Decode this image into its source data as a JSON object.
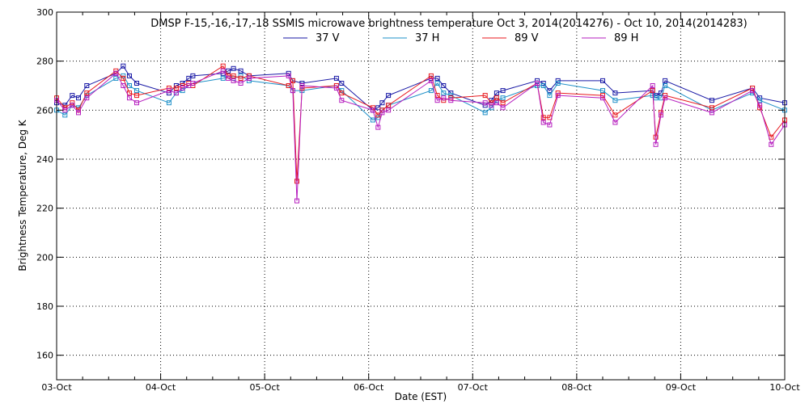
{
  "chart_data": {
    "type": "line",
    "title": "DMSP F-15,-16,-17,-18 SSMIS microwave brightness temperature Oct  3, 2014(2014276) - Oct 10, 2014(2014283)",
    "xlabel": "Date (EST)",
    "ylabel": "Brightness Temperature, Deg K",
    "xlim": [
      0,
      7
    ],
    "ylim": [
      150,
      300
    ],
    "yticks": [
      160,
      180,
      200,
      220,
      240,
      260,
      280,
      300
    ],
    "xticks": [
      0,
      1,
      2,
      3,
      4,
      5,
      6,
      7
    ],
    "xtick_labels": [
      "03-Oct",
      "04-Oct",
      "05-Oct",
      "06-Oct",
      "07-Oct",
      "08-Oct",
      "09-Oct",
      "10-Oct"
    ],
    "grid": true,
    "legend_position": "top",
    "series": [
      {
        "name": "37 V",
        "color": "#1a1aa6",
        "x": [
          0.0,
          0.08,
          0.15,
          0.21,
          0.29,
          0.57,
          0.64,
          0.7,
          0.77,
          1.08,
          1.15,
          1.21,
          1.27,
          1.31,
          1.6,
          1.65,
          1.7,
          1.77,
          1.85,
          2.23,
          2.27,
          2.36,
          2.69,
          2.74,
          3.04,
          3.09,
          3.13,
          3.19,
          3.6,
          3.66,
          3.72,
          3.79,
          4.12,
          4.18,
          4.23,
          4.29,
          4.62,
          4.68,
          4.74,
          4.82,
          5.25,
          5.37,
          5.73,
          5.76,
          5.81,
          5.85,
          6.3,
          6.69,
          6.76,
          7.0
        ],
        "y": [
          263,
          262,
          266,
          265,
          270,
          275,
          278,
          274,
          271,
          267,
          270,
          271,
          273,
          274,
          275,
          276,
          277,
          276,
          274,
          275,
          272,
          271,
          273,
          271,
          260,
          261,
          263,
          266,
          273,
          273,
          270,
          267,
          262,
          264,
          267,
          268,
          272,
          271,
          268,
          272,
          272,
          267,
          268,
          266,
          267,
          272,
          264,
          269,
          265,
          263
        ]
      },
      {
        "name": "37 H",
        "color": "#1e90c8",
        "x": [
          0.0,
          0.08,
          0.15,
          0.21,
          0.29,
          0.57,
          0.64,
          0.7,
          0.77,
          1.08,
          1.15,
          1.21,
          1.27,
          1.31,
          1.6,
          1.65,
          1.7,
          1.77,
          1.85,
          2.23,
          2.27,
          2.36,
          2.69,
          2.74,
          3.04,
          3.09,
          3.13,
          3.19,
          3.6,
          3.66,
          3.72,
          3.79,
          4.12,
          4.18,
          4.23,
          4.29,
          4.62,
          4.68,
          4.74,
          4.82,
          5.25,
          5.37,
          5.73,
          5.76,
          5.81,
          5.85,
          6.3,
          6.69,
          6.76,
          7.0
        ],
        "y": [
          260,
          258,
          262,
          261,
          266,
          273,
          274,
          270,
          268,
          263,
          267,
          268,
          270,
          271,
          273,
          274,
          273,
          274,
          272,
          270,
          268,
          268,
          270,
          268,
          256,
          257,
          260,
          262,
          268,
          271,
          267,
          266,
          259,
          261,
          264,
          265,
          270,
          270,
          266,
          271,
          268,
          264,
          266,
          265,
          265,
          270,
          260,
          267,
          264,
          260
        ]
      },
      {
        "name": "89 V",
        "color": "#e8191e",
        "x": [
          0.0,
          0.08,
          0.15,
          0.21,
          0.29,
          0.57,
          0.64,
          0.7,
          0.77,
          1.08,
          1.15,
          1.21,
          1.27,
          1.31,
          1.6,
          1.65,
          1.7,
          1.77,
          1.85,
          2.23,
          2.27,
          2.31,
          2.36,
          2.69,
          2.74,
          3.04,
          3.09,
          3.13,
          3.19,
          3.6,
          3.66,
          3.72,
          3.79,
          4.12,
          4.18,
          4.23,
          4.29,
          4.62,
          4.68,
          4.74,
          4.82,
          5.25,
          5.37,
          5.73,
          5.76,
          5.81,
          5.85,
          6.3,
          6.69,
          6.76,
          6.87,
          7.0
        ],
        "y": [
          265,
          261,
          263,
          260,
          267,
          276,
          273,
          267,
          266,
          269,
          269,
          270,
          271,
          270,
          278,
          274,
          274,
          273,
          274,
          270,
          272,
          231,
          269,
          270,
          267,
          261,
          258,
          260,
          262,
          274,
          266,
          264,
          265,
          266,
          263,
          265,
          263,
          271,
          257,
          257,
          267,
          266,
          258,
          268,
          249,
          259,
          266,
          261,
          269,
          261,
          249,
          256
        ]
      },
      {
        "name": "89 H",
        "color": "#b61ebf",
        "x": [
          0.0,
          0.08,
          0.15,
          0.21,
          0.29,
          0.57,
          0.64,
          0.7,
          0.77,
          1.08,
          1.15,
          1.21,
          1.27,
          1.31,
          1.6,
          1.65,
          1.7,
          1.77,
          1.85,
          2.23,
          2.27,
          2.31,
          2.36,
          2.69,
          2.74,
          3.04,
          3.09,
          3.13,
          3.19,
          3.6,
          3.66,
          3.72,
          3.79,
          4.12,
          4.18,
          4.23,
          4.29,
          4.62,
          4.68,
          4.74,
          4.82,
          5.25,
          5.37,
          5.73,
          5.76,
          5.81,
          5.85,
          6.3,
          6.69,
          6.76,
          6.87,
          7.0
        ],
        "y": [
          264,
          260,
          262,
          259,
          265,
          275,
          270,
          265,
          263,
          268,
          267,
          269,
          270,
          271,
          276,
          273,
          272,
          271,
          273,
          274,
          268,
          223,
          270,
          269,
          264,
          260,
          253,
          259,
          260,
          272,
          264,
          265,
          264,
          263,
          262,
          263,
          261,
          271,
          255,
          254,
          266,
          265,
          255,
          270,
          246,
          258,
          265,
          259,
          268,
          262,
          246,
          254
        ]
      }
    ]
  }
}
